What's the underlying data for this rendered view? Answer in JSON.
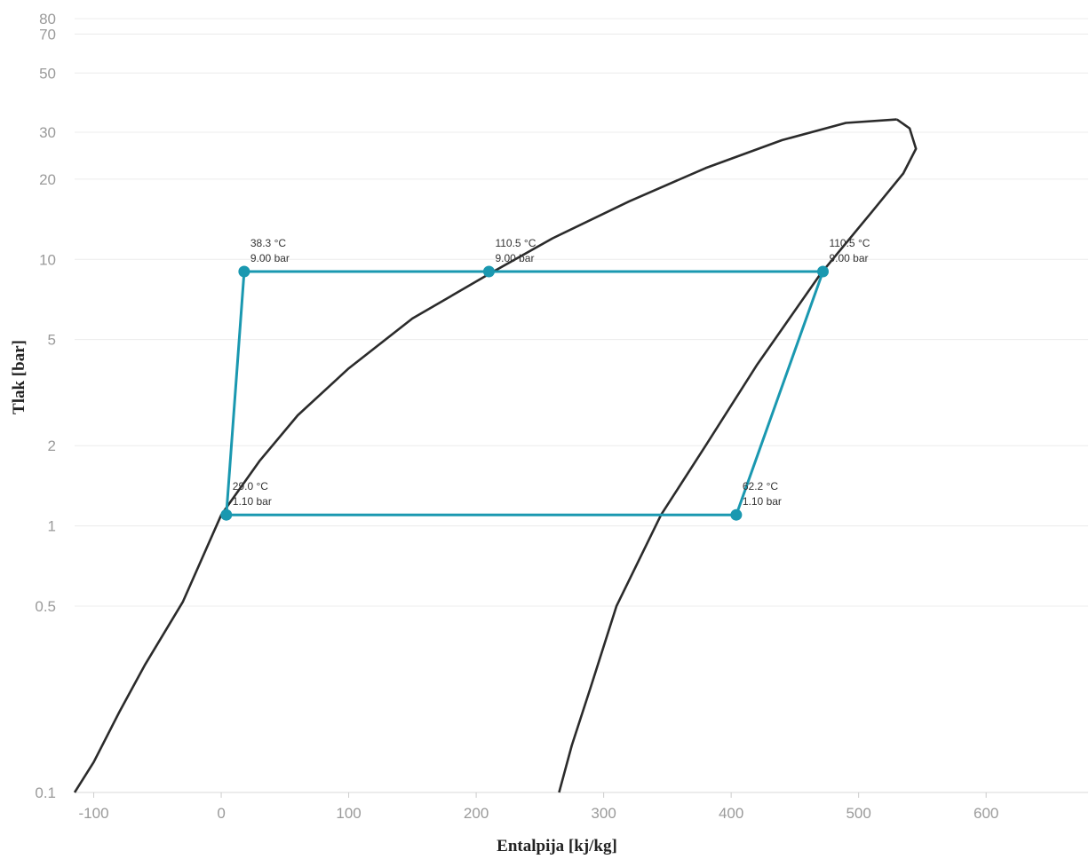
{
  "chart_data": {
    "type": "line",
    "title": "",
    "xlabel": "Entalpija [kj/kg]",
    "ylabel": "Tlak [bar]",
    "xlim": [
      -115,
      680
    ],
    "ylim": [
      0.1,
      80
    ],
    "yscale": "log",
    "grid": "horizontal",
    "x_ticks": [
      -100,
      0,
      100,
      200,
      300,
      400,
      500,
      600
    ],
    "y_ticks": [
      0.1,
      0.5,
      1,
      2,
      5,
      10,
      20,
      30,
      50,
      70,
      80
    ],
    "dome": {
      "color": "#2b2b2b",
      "liquid_line": [
        [
          -115,
          0.1
        ],
        [
          -100,
          0.13
        ],
        [
          -80,
          0.2
        ],
        [
          -60,
          0.3
        ],
        [
          -30,
          0.52
        ],
        [
          0,
          1.1
        ],
        [
          30,
          1.75
        ],
        [
          60,
          2.6
        ],
        [
          100,
          3.9
        ],
        [
          150,
          6.0
        ],
        [
          210,
          8.8
        ],
        [
          260,
          12
        ],
        [
          320,
          16.5
        ],
        [
          380,
          22
        ],
        [
          440,
          28
        ],
        [
          490,
          32.5
        ],
        [
          530,
          33.5
        ]
      ],
      "vapor_line": [
        [
          265,
          0.1
        ],
        [
          275,
          0.15
        ],
        [
          290,
          0.25
        ],
        [
          310,
          0.5
        ],
        [
          345,
          1.1
        ],
        [
          380,
          2.0
        ],
        [
          420,
          4.0
        ],
        [
          470,
          8.8
        ],
        [
          510,
          15
        ],
        [
          535,
          21
        ],
        [
          545,
          26
        ],
        [
          540,
          31
        ],
        [
          530,
          33.5
        ]
      ]
    },
    "cycle": {
      "color": "#1a98b0",
      "points": [
        {
          "h": 18,
          "p": 9.0,
          "label_t": "38.3 °C",
          "label_p": "9.00 bar"
        },
        {
          "h": 210,
          "p": 9.0,
          "label_t": "110.5 °C",
          "label_p": "9.00 bar"
        },
        {
          "h": 472,
          "p": 9.0,
          "label_t": "110.5 °C",
          "label_p": "9.00 bar"
        },
        {
          "h": 404,
          "p": 1.1,
          "label_t": "62.2 °C",
          "label_p": "1.10 bar"
        },
        {
          "h": 4,
          "p": 1.1,
          "label_t": "29.0 °C",
          "label_p": "1.10 bar"
        }
      ]
    }
  }
}
